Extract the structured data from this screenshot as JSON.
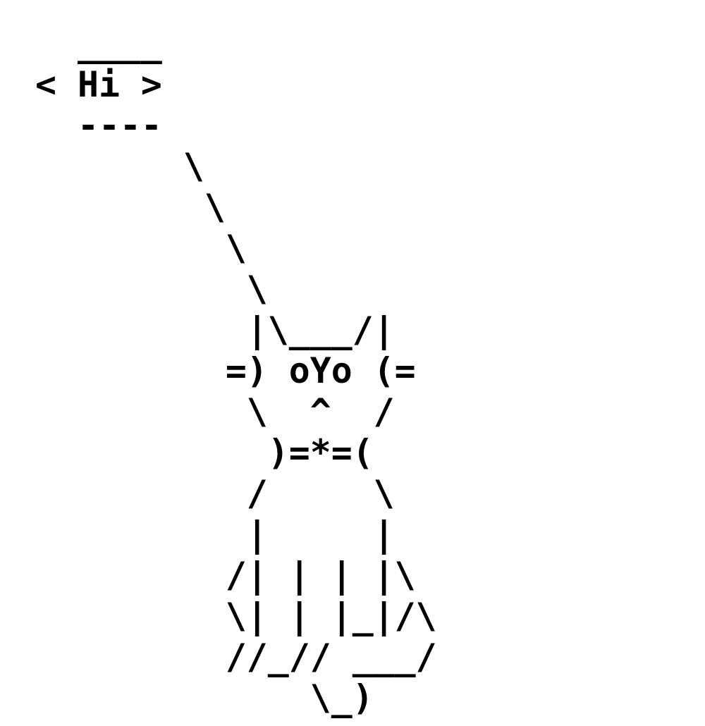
{
  "ascii_art": {
    "lines": [
      "  ____",
      "< Hi >",
      "  ----",
      "       \\",
      "        \\",
      "         \\",
      "          \\",
      "          |\\___/|",
      "         =) oYo (=",
      "          \\  ^  /",
      "           )=*=(",
      "          /     \\",
      "          |     |",
      "         /| | | |\\",
      "         \\| | |_|/\\",
      "         //_// ___/",
      "             \\_)"
    ]
  },
  "colors": {
    "text": "#000000",
    "background": "#ffffff"
  }
}
